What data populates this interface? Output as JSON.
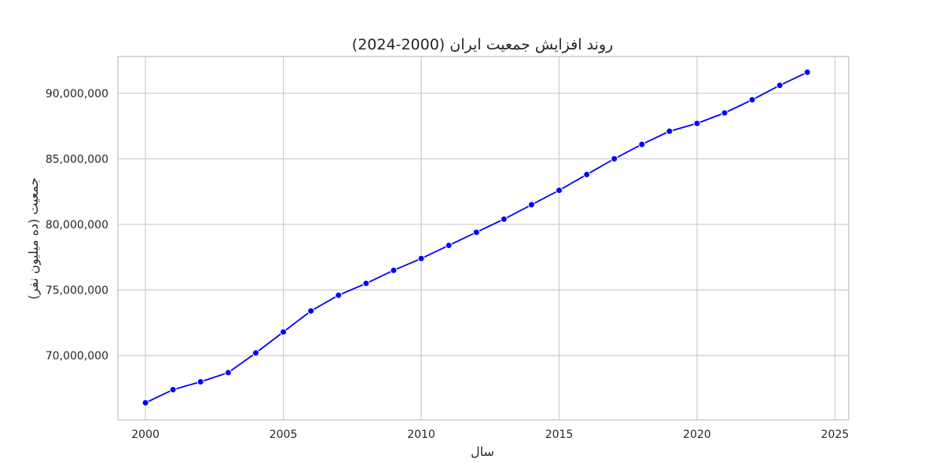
{
  "chart_data": {
    "type": "line",
    "title": "روند افزایش جمعیت ایران (2000-2024)",
    "xlabel": "سال",
    "ylabel": "جمعیت (ده میلیون نفر)",
    "xlim": [
      1999,
      2025.5
    ],
    "ylim": [
      65100000,
      92800000
    ],
    "x_ticks": [
      2000,
      2005,
      2010,
      2015,
      2020,
      2025
    ],
    "y_ticks": [
      70000000,
      75000000,
      80000000,
      85000000,
      90000000
    ],
    "y_tick_labels": [
      "70,000,000",
      "75,000,000",
      "80,000,000",
      "85,000,000",
      "90,000,000"
    ],
    "grid": true,
    "series": [
      {
        "color": "#0000ff",
        "x": [
          2000,
          2001,
          2002,
          2003,
          2004,
          2005,
          2006,
          2007,
          2008,
          2009,
          2010,
          2011,
          2012,
          2013,
          2014,
          2015,
          2016,
          2017,
          2018,
          2019,
          2020,
          2021,
          2022,
          2023,
          2024
        ],
        "y": [
          66400000,
          67400000,
          68000000,
          68700000,
          70200000,
          71800000,
          73400000,
          74600000,
          75500000,
          76500000,
          77400000,
          78400000,
          79400000,
          80400000,
          81500000,
          82600000,
          83800000,
          85000000,
          86100000,
          87100000,
          87700000,
          88500000,
          89500000,
          90600000,
          91600000
        ]
      }
    ]
  }
}
